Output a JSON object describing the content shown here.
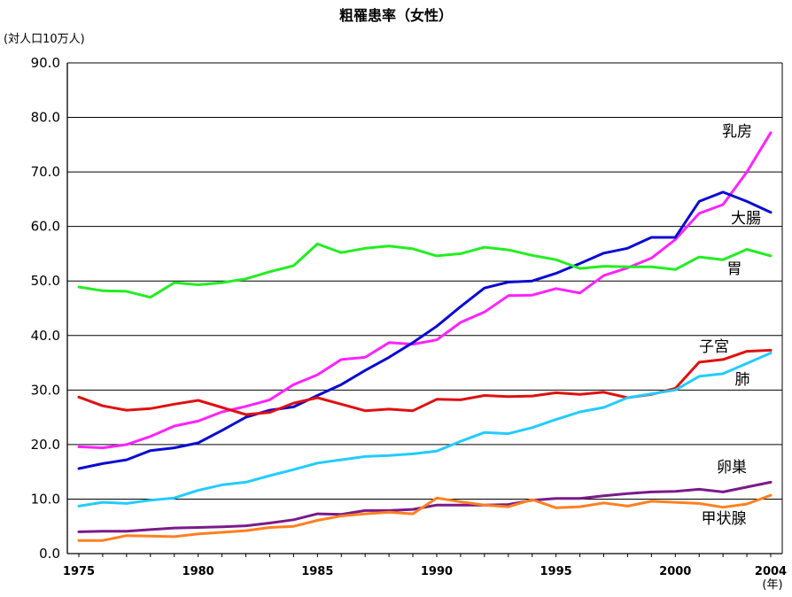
{
  "chart_data": {
    "type": "line",
    "title": "粗罹患率（女性）",
    "ylabel": "(対人口10万人)",
    "xlabel": "(年)",
    "ylim": [
      0,
      90
    ],
    "yticks": [
      "0.0",
      "10.0",
      "20.0",
      "30.0",
      "40.0",
      "50.0",
      "60.0",
      "70.0",
      "80.0",
      "90.0"
    ],
    "xlim": [
      1975,
      2004
    ],
    "xticks": [
      "1975",
      "1980",
      "1985",
      "1990",
      "1995",
      "2000",
      "2004"
    ],
    "grid": "horizontal",
    "x": [
      1975,
      1976,
      1977,
      1978,
      1979,
      1980,
      1981,
      1982,
      1983,
      1984,
      1985,
      1986,
      1987,
      1988,
      1989,
      1990,
      1991,
      1992,
      1993,
      1994,
      1995,
      1996,
      1997,
      1998,
      1999,
      2000,
      2001,
      2002,
      2003,
      2004
    ],
    "series": [
      {
        "name": "乳房",
        "color": "#ff22ff",
        "values": [
          19.6,
          19.4,
          20.0,
          21.5,
          23.4,
          24.3,
          26.0,
          27.0,
          28.2,
          31.0,
          32.8,
          35.6,
          36.0,
          38.7,
          38.4,
          39.2,
          42.4,
          44.3,
          47.3,
          47.4,
          48.6,
          47.8,
          51.0,
          52.4,
          54.2,
          57.6,
          62.4,
          64.0,
          70.0,
          77.2
        ]
      },
      {
        "name": "大腸",
        "color": "#0a0ad2",
        "values": [
          15.6,
          16.5,
          17.2,
          18.9,
          19.4,
          20.3,
          22.6,
          25.0,
          26.3,
          26.9,
          29.0,
          31.0,
          33.6,
          36.0,
          38.7,
          41.7,
          45.3,
          48.7,
          49.8,
          50.0,
          51.4,
          53.2,
          55.1,
          56.0,
          58.0,
          58.0,
          64.6,
          66.3,
          64.6,
          62.6
        ]
      },
      {
        "name": "胃",
        "color": "#22ee22",
        "values": [
          48.9,
          48.2,
          48.1,
          47.0,
          49.7,
          49.3,
          49.7,
          50.4,
          51.7,
          52.8,
          56.8,
          55.2,
          56.0,
          56.4,
          55.9,
          54.6,
          55.0,
          56.2,
          55.7,
          54.7,
          53.9,
          52.3,
          52.7,
          52.6,
          52.6,
          52.1,
          54.4,
          53.9,
          55.8,
          54.6
        ]
      },
      {
        "name": "子宮",
        "color": "#e01010",
        "values": [
          28.7,
          27.1,
          26.3,
          26.6,
          27.4,
          28.1,
          26.8,
          25.5,
          25.9,
          27.6,
          28.6,
          27.4,
          26.2,
          26.5,
          26.2,
          28.3,
          28.2,
          29.0,
          28.8,
          28.9,
          29.5,
          29.2,
          29.6,
          28.6,
          29.2,
          30.3,
          35.1,
          35.6,
          37.1,
          37.3
        ]
      },
      {
        "name": "肺",
        "color": "#22ccff",
        "values": [
          8.7,
          9.4,
          9.2,
          9.8,
          10.2,
          11.6,
          12.6,
          13.1,
          14.3,
          15.4,
          16.6,
          17.2,
          17.8,
          18.0,
          18.3,
          18.8,
          20.6,
          22.2,
          22.0,
          23.1,
          24.6,
          26.0,
          26.8,
          28.6,
          29.3,
          30.0,
          32.5,
          33.0,
          34.9,
          36.8
        ]
      },
      {
        "name": "卵巣",
        "color": "#7a1a8a",
        "values": [
          4.0,
          4.1,
          4.1,
          4.4,
          4.7,
          4.8,
          4.9,
          5.1,
          5.6,
          6.2,
          7.3,
          7.2,
          7.9,
          7.9,
          8.1,
          8.9,
          8.9,
          8.9,
          9.0,
          9.8,
          10.1,
          10.1,
          10.6,
          11.0,
          11.3,
          11.4,
          11.8,
          11.3,
          12.2,
          13.1
        ]
      },
      {
        "name": "甲状腺",
        "color": "#ff8020",
        "values": [
          2.4,
          2.4,
          3.3,
          3.2,
          3.1,
          3.6,
          3.9,
          4.2,
          4.8,
          5.0,
          6.1,
          6.9,
          7.3,
          7.6,
          7.3,
          10.2,
          9.5,
          8.9,
          8.6,
          9.9,
          8.4,
          8.6,
          9.3,
          8.7,
          9.6,
          9.4,
          9.2,
          8.5,
          9.1,
          10.7
        ]
      }
    ]
  }
}
